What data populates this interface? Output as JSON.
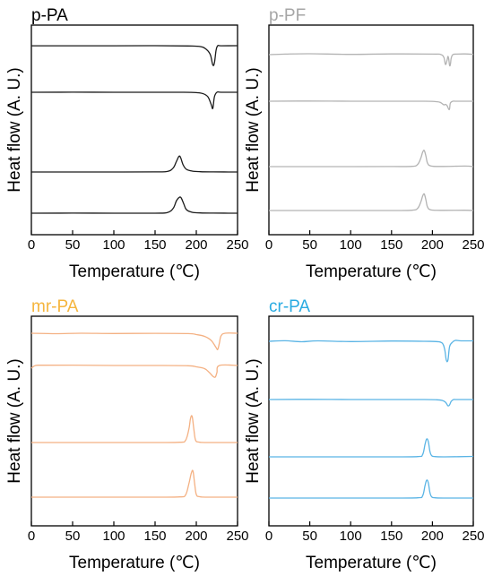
{
  "chart_data": [
    {
      "type": "line",
      "title": "p-PA",
      "title_color": "#000000",
      "line_color": "#1a1a1a",
      "xlabel": "Temperature (℃)",
      "ylabel": "Heat flow (A. U.)",
      "xlim": [
        0,
        250
      ],
      "xticks": [
        "0",
        "50",
        "100",
        "150",
        "200",
        "250"
      ],
      "yticks": "none",
      "grid": false,
      "legend": "none",
      "series": [
        {
          "x": [
            0,
            50,
            100,
            150,
            190,
            205,
            212,
            217,
            220,
            222,
            224,
            226,
            230,
            250
          ],
          "y": [
            0.9,
            0.85,
            0.9,
            1.0,
            0.7,
            0.0,
            -3.0,
            -9.0,
            -20.5,
            -18.0,
            -4.0,
            1.0,
            0.9,
            1.0
          ]
        },
        {
          "x": [
            0,
            50,
            100,
            150,
            185,
            200,
            208,
            214,
            218,
            220,
            222,
            225,
            230,
            250
          ],
          "y": [
            0.0,
            0.1,
            0.0,
            0.0,
            0.0,
            -0.4,
            -1.5,
            -5.0,
            -13.5,
            -18.0,
            -5.0,
            0.0,
            0.0,
            0.0
          ]
        },
        {
          "x": [
            0,
            50,
            100,
            150,
            165,
            172,
            176,
            179,
            181,
            184,
            188,
            195,
            205,
            220,
            250
          ],
          "y": [
            0.0,
            0.0,
            0.0,
            0.1,
            0.6,
            4.5,
            12.0,
            17.5,
            16.0,
            8.0,
            3.0,
            1.0,
            0.3,
            0.1,
            0.0
          ]
        },
        {
          "x": [
            0,
            50,
            100,
            150,
            165,
            172,
            176,
            180,
            182,
            185,
            188,
            195,
            205,
            220,
            250
          ],
          "y": [
            0.0,
            0.1,
            0.0,
            0.0,
            0.8,
            5.5,
            14.0,
            18.0,
            16.5,
            10.0,
            4.0,
            1.0,
            0.3,
            0.1,
            0.0
          ]
        }
      ]
    },
    {
      "type": "line",
      "title": "p-PF",
      "title_color": "#a6a6a6",
      "line_color": "#b3b3b3",
      "xlabel": "Temperature (℃)",
      "ylabel": "Heat flow (A. U.)",
      "xlim": [
        0,
        250
      ],
      "xticks": [
        "0",
        "50",
        "100",
        "150",
        "200",
        "250"
      ],
      "yticks": "none",
      "grid": false,
      "legend": "none",
      "series": [
        {
          "x": [
            0,
            20,
            50,
            100,
            150,
            200,
            210,
            214,
            216,
            218,
            219,
            220,
            221,
            222,
            223,
            225,
            230,
            240,
            250
          ],
          "y": [
            0.0,
            0.6,
            1.0,
            0.3,
            0.8,
            0.6,
            0.2,
            -3.0,
            -11.0,
            -6.0,
            -2.0,
            -5.0,
            -12.0,
            -11.0,
            -4.0,
            0.0,
            0.6,
            0.8,
            0.3
          ]
        },
        {
          "x": [
            0,
            50,
            100,
            150,
            190,
            205,
            210,
            214,
            216,
            218,
            220,
            221,
            222,
            225,
            230,
            250
          ],
          "y": [
            0.0,
            0.2,
            0.0,
            0.0,
            0.0,
            -0.5,
            -1.5,
            -4.0,
            -3.5,
            -5.0,
            -9.0,
            -8.5,
            -2.0,
            0.0,
            0.0,
            0.0
          ]
        },
        {
          "x": [
            0,
            50,
            100,
            150,
            175,
            182,
            186,
            188,
            190,
            192,
            194,
            198,
            210,
            240,
            250
          ],
          "y": [
            0.0,
            0.0,
            0.0,
            0.1,
            0.3,
            2.5,
            10.0,
            16.0,
            18.0,
            12.0,
            4.0,
            0.8,
            0.2,
            0.6,
            0.0
          ]
        },
        {
          "x": [
            0,
            50,
            100,
            150,
            175,
            182,
            186,
            188,
            190,
            192,
            194,
            198,
            210,
            240,
            250
          ],
          "y": [
            0.0,
            0.0,
            0.0,
            0.0,
            0.3,
            2.5,
            10.0,
            16.0,
            18.5,
            12.0,
            4.0,
            0.8,
            0.2,
            0.3,
            0.0
          ]
        }
      ]
    },
    {
      "type": "line",
      "title": "mr-PA",
      "title_color": "#f5b53d",
      "line_color": "#f4b183",
      "xlabel": "Temperature (℃)",
      "ylabel": "Heat flow (A. U.)",
      "xlim": [
        0,
        250
      ],
      "xticks": [
        "0",
        "50",
        "100",
        "150",
        "200",
        "250"
      ],
      "yticks": "none",
      "grid": false,
      "legend": "none",
      "series": [
        {
          "x": [
            0,
            30,
            60,
            100,
            150,
            190,
            200,
            210,
            218,
            224,
            226,
            228,
            230,
            235,
            250
          ],
          "y": [
            1.0,
            0.5,
            1.0,
            0.7,
            0.9,
            0.6,
            -0.5,
            -2.5,
            -7.0,
            -15.0,
            -17.0,
            -10.0,
            -2.0,
            1.0,
            1.0
          ]
        },
        {
          "x": [
            0,
            5,
            15,
            50,
            100,
            150,
            190,
            200,
            210,
            216,
            220,
            223,
            225,
            228,
            250
          ],
          "y": [
            -3.0,
            0.0,
            0.3,
            0.4,
            0.0,
            0.0,
            -0.3,
            -1.5,
            -3.5,
            -8.0,
            -12.0,
            -13.0,
            -8.0,
            0.0,
            0.0
          ]
        },
        {
          "x": [
            0,
            50,
            100,
            150,
            180,
            187,
            191,
            193,
            195,
            197,
            199,
            203,
            215,
            250
          ],
          "y": [
            0.0,
            0.0,
            0.0,
            0.0,
            0.3,
            2.5,
            15.0,
            27.0,
            29.0,
            15.0,
            3.0,
            0.5,
            0.0,
            0.0
          ]
        },
        {
          "x": [
            0,
            50,
            100,
            150,
            180,
            187,
            191,
            194,
            196,
            198,
            200,
            204,
            215,
            250
          ],
          "y": [
            0.0,
            0.0,
            0.0,
            0.0,
            0.3,
            2.5,
            15.0,
            27.0,
            29.0,
            15.0,
            3.0,
            0.5,
            0.0,
            0.0
          ]
        }
      ]
    },
    {
      "type": "line",
      "title": "cr-PA",
      "title_color": "#29abe2",
      "line_color": "#5ab4e5",
      "xlabel": "Temperature (℃)",
      "ylabel": "Heat flow (A. U.)",
      "xlim": [
        0,
        250
      ],
      "xticks": [
        "0",
        "50",
        "100",
        "150",
        "200",
        "250"
      ],
      "yticks": "none",
      "grid": false,
      "legend": "none",
      "series": [
        {
          "x": [
            0,
            20,
            40,
            60,
            100,
            150,
            190,
            205,
            212,
            215,
            217,
            219,
            221,
            224,
            228,
            235,
            250
          ],
          "y": [
            0.0,
            0.6,
            -0.5,
            0.5,
            -0.3,
            0.3,
            0.0,
            -0.3,
            -2.0,
            -9.0,
            -21.0,
            -21.0,
            -6.0,
            -1.5,
            1.0,
            0.5,
            0.5
          ]
        },
        {
          "x": [
            0,
            50,
            100,
            150,
            190,
            205,
            212,
            216,
            219,
            221,
            223,
            226,
            230,
            250
          ],
          "y": [
            0.0,
            0.2,
            0.0,
            0.0,
            0.0,
            -0.3,
            -1.0,
            -3.0,
            -7.0,
            -6.0,
            -2.0,
            0.0,
            0.0,
            0.0
          ]
        },
        {
          "x": [
            0,
            50,
            100,
            150,
            182,
            188,
            191,
            193,
            195,
            197,
            199,
            203,
            215,
            250
          ],
          "y": [
            0.0,
            0.0,
            0.0,
            0.0,
            0.3,
            2.5,
            14.0,
            20.0,
            17.0,
            6.0,
            1.5,
            0.3,
            0.0,
            0.5
          ]
        },
        {
          "x": [
            0,
            50,
            100,
            150,
            182,
            188,
            191,
            193,
            195,
            197,
            199,
            203,
            215,
            250
          ],
          "y": [
            0.0,
            0.0,
            0.0,
            0.0,
            0.3,
            2.5,
            14.0,
            20.0,
            17.0,
            6.0,
            1.5,
            0.3,
            0.0,
            0.0
          ]
        }
      ]
    }
  ]
}
